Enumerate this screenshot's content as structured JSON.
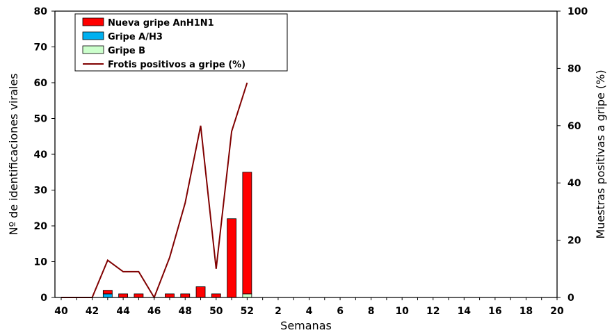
{
  "chart_data": {
    "type": "bar",
    "title": "",
    "xlabel": "Semanas",
    "ylabel": "Nº de identificaciones virales",
    "y2label": "Muestras positivas a gripe (%)",
    "ylim": [
      0,
      80
    ],
    "y2lim": [
      0,
      100
    ],
    "yticks": [
      "0",
      "10",
      "20",
      "30",
      "40",
      "50",
      "60",
      "70",
      "80"
    ],
    "y2ticks": [
      "0",
      "20",
      "40",
      "60",
      "80",
      "100"
    ],
    "weeks": [
      "40",
      "41",
      "42",
      "43",
      "44",
      "45",
      "46",
      "47",
      "48",
      "49",
      "50",
      "51",
      "52",
      "1",
      "2",
      "3",
      "4",
      "5",
      "6",
      "7",
      "8",
      "9",
      "10",
      "11",
      "12",
      "13",
      "14",
      "15",
      "16",
      "17",
      "18",
      "19",
      "20"
    ],
    "xtick_labels": [
      "40",
      "",
      "42",
      "",
      "44",
      "",
      "46",
      "",
      "48",
      "",
      "50",
      "",
      "52",
      "",
      "2",
      "",
      "4",
      "",
      "6",
      "",
      "8",
      "",
      "10",
      "",
      "12",
      "",
      "14",
      "",
      "16",
      "",
      "18",
      "",
      "20"
    ],
    "grid": false,
    "legend_position": "top-left",
    "series": [
      {
        "name": "Nueva gripe AnH1N1",
        "kind": "bar",
        "color": "#ff0000",
        "values": [
          0,
          0,
          0,
          1,
          1,
          1,
          0,
          1,
          1,
          3,
          1,
          22,
          34,
          null,
          null,
          null,
          null,
          null,
          null,
          null,
          null,
          null,
          null,
          null,
          null,
          null,
          null,
          null,
          null,
          null,
          null,
          null,
          null
        ]
      },
      {
        "name": "Gripe A/H3",
        "kind": "bar",
        "color": "#00b0f0",
        "values": [
          0,
          0,
          0,
          1,
          0,
          0,
          0,
          0,
          0,
          0,
          0,
          0,
          0,
          null,
          null,
          null,
          null,
          null,
          null,
          null,
          null,
          null,
          null,
          null,
          null,
          null,
          null,
          null,
          null,
          null,
          null,
          null,
          null
        ]
      },
      {
        "name": "Gripe B",
        "kind": "bar",
        "color": "#ccffcc",
        "values": [
          0,
          0,
          0,
          0,
          0,
          0,
          0,
          0,
          0,
          0,
          0,
          0,
          1,
          null,
          null,
          null,
          null,
          null,
          null,
          null,
          null,
          null,
          null,
          null,
          null,
          null,
          null,
          null,
          null,
          null,
          null,
          null,
          null
        ]
      },
      {
        "name": "Frotis positivos a gripe (%)",
        "kind": "line",
        "axis": "right",
        "color": "#800000",
        "values": [
          0,
          0,
          0,
          13,
          9,
          9,
          0,
          14,
          33,
          60,
          10,
          58,
          75,
          null,
          null,
          null,
          null,
          null,
          null,
          null,
          null,
          null,
          null,
          null,
          null,
          null,
          null,
          null,
          null,
          null,
          null,
          null,
          null
        ]
      }
    ]
  }
}
